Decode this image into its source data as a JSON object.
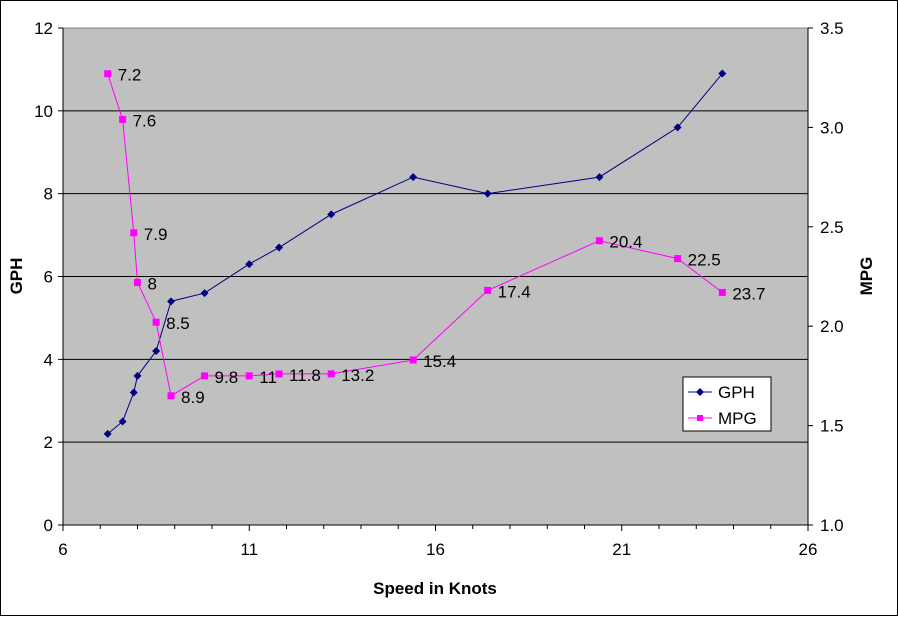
{
  "chart_data": {
    "type": "line",
    "xlabel": "Speed in Knots",
    "ylabel": "GPH",
    "y2label": "MPG",
    "xlim": [
      6,
      26
    ],
    "xticks": [
      "6",
      "11",
      "16",
      "21",
      "26"
    ],
    "ylim": [
      0,
      12
    ],
    "yticks": [
      "0",
      "2",
      "4",
      "6",
      "8",
      "10",
      "12"
    ],
    "y2lim": [
      1.0,
      3.5
    ],
    "y2ticks": [
      "1.0",
      "1.5",
      "2.0",
      "2.5",
      "3.0",
      "3.5"
    ],
    "grid": true,
    "legend_placement": "bottom-right",
    "plot_background": "#C0C0C0",
    "x": [
      7.2,
      7.6,
      7.9,
      8,
      8.5,
      8.9,
      9.8,
      11,
      11.8,
      13.2,
      15.4,
      17.4,
      20.4,
      22.5,
      23.7
    ],
    "series": [
      {
        "name": "GPH",
        "axis": "left",
        "color": "#000080",
        "marker": "diamond",
        "values": [
          2.2,
          2.5,
          3.2,
          3.6,
          4.2,
          5.4,
          5.6,
          6.3,
          6.7,
          7.5,
          8.4,
          8.0,
          8.4,
          9.6,
          10.9
        ]
      },
      {
        "name": "MPG",
        "axis": "right",
        "color": "#FF00FF",
        "marker": "square",
        "values": [
          3.27,
          3.04,
          2.47,
          2.22,
          2.02,
          1.65,
          1.75,
          1.75,
          1.76,
          1.76,
          1.83,
          2.18,
          2.43,
          2.34,
          2.17
        ],
        "data_labels": [
          "7.2",
          "7.6",
          "7.9",
          "8",
          "8.5",
          "8.9",
          "9.8",
          "11",
          "11.8",
          "13.2",
          "15.4",
          "17.4",
          "20.4",
          "22.5",
          "23.7"
        ]
      }
    ]
  }
}
